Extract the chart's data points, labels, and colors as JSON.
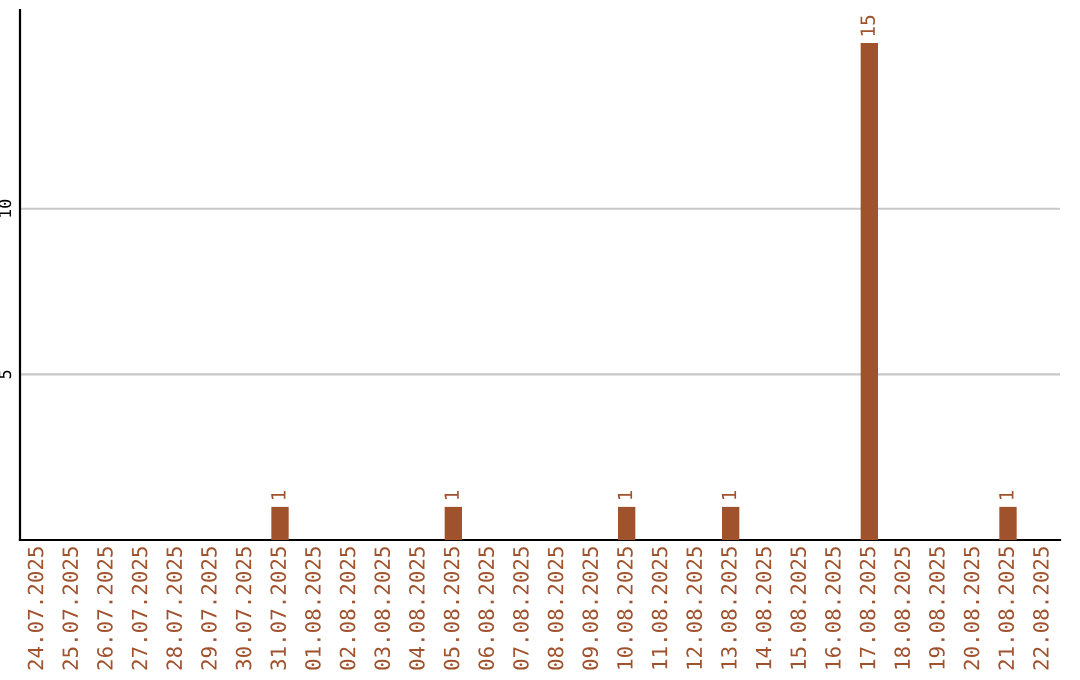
{
  "chart_data": {
    "type": "bar",
    "categories": [
      "24.07.2025",
      "25.07.2025",
      "26.07.2025",
      "27.07.2025",
      "28.07.2025",
      "29.07.2025",
      "30.07.2025",
      "31.07.2025",
      "01.08.2025",
      "02.08.2025",
      "03.08.2025",
      "04.08.2025",
      "05.08.2025",
      "06.08.2025",
      "07.08.2025",
      "08.08.2025",
      "09.08.2025",
      "10.08.2025",
      "11.08.2025",
      "12.08.2025",
      "13.08.2025",
      "14.08.2025",
      "15.08.2025",
      "16.08.2025",
      "17.08.2025",
      "18.08.2025",
      "19.08.2025",
      "20.08.2025",
      "21.08.2025",
      "22.08.2025"
    ],
    "values": [
      0,
      0,
      0,
      0,
      0,
      0,
      0,
      1,
      0,
      0,
      0,
      0,
      1,
      0,
      0,
      0,
      0,
      1,
      0,
      0,
      1,
      0,
      0,
      0,
      15,
      0,
      0,
      0,
      1,
      0
    ],
    "value_labels": [
      null,
      null,
      null,
      null,
      null,
      null,
      null,
      "1",
      null,
      null,
      null,
      null,
      "1",
      null,
      null,
      null,
      null,
      "1",
      null,
      null,
      "1",
      null,
      null,
      null,
      "15",
      null,
      null,
      null,
      "1",
      null
    ],
    "color": "#a0522d",
    "ylim": [
      0,
      16
    ],
    "yticks": [
      5,
      10
    ],
    "grid": "y"
  }
}
